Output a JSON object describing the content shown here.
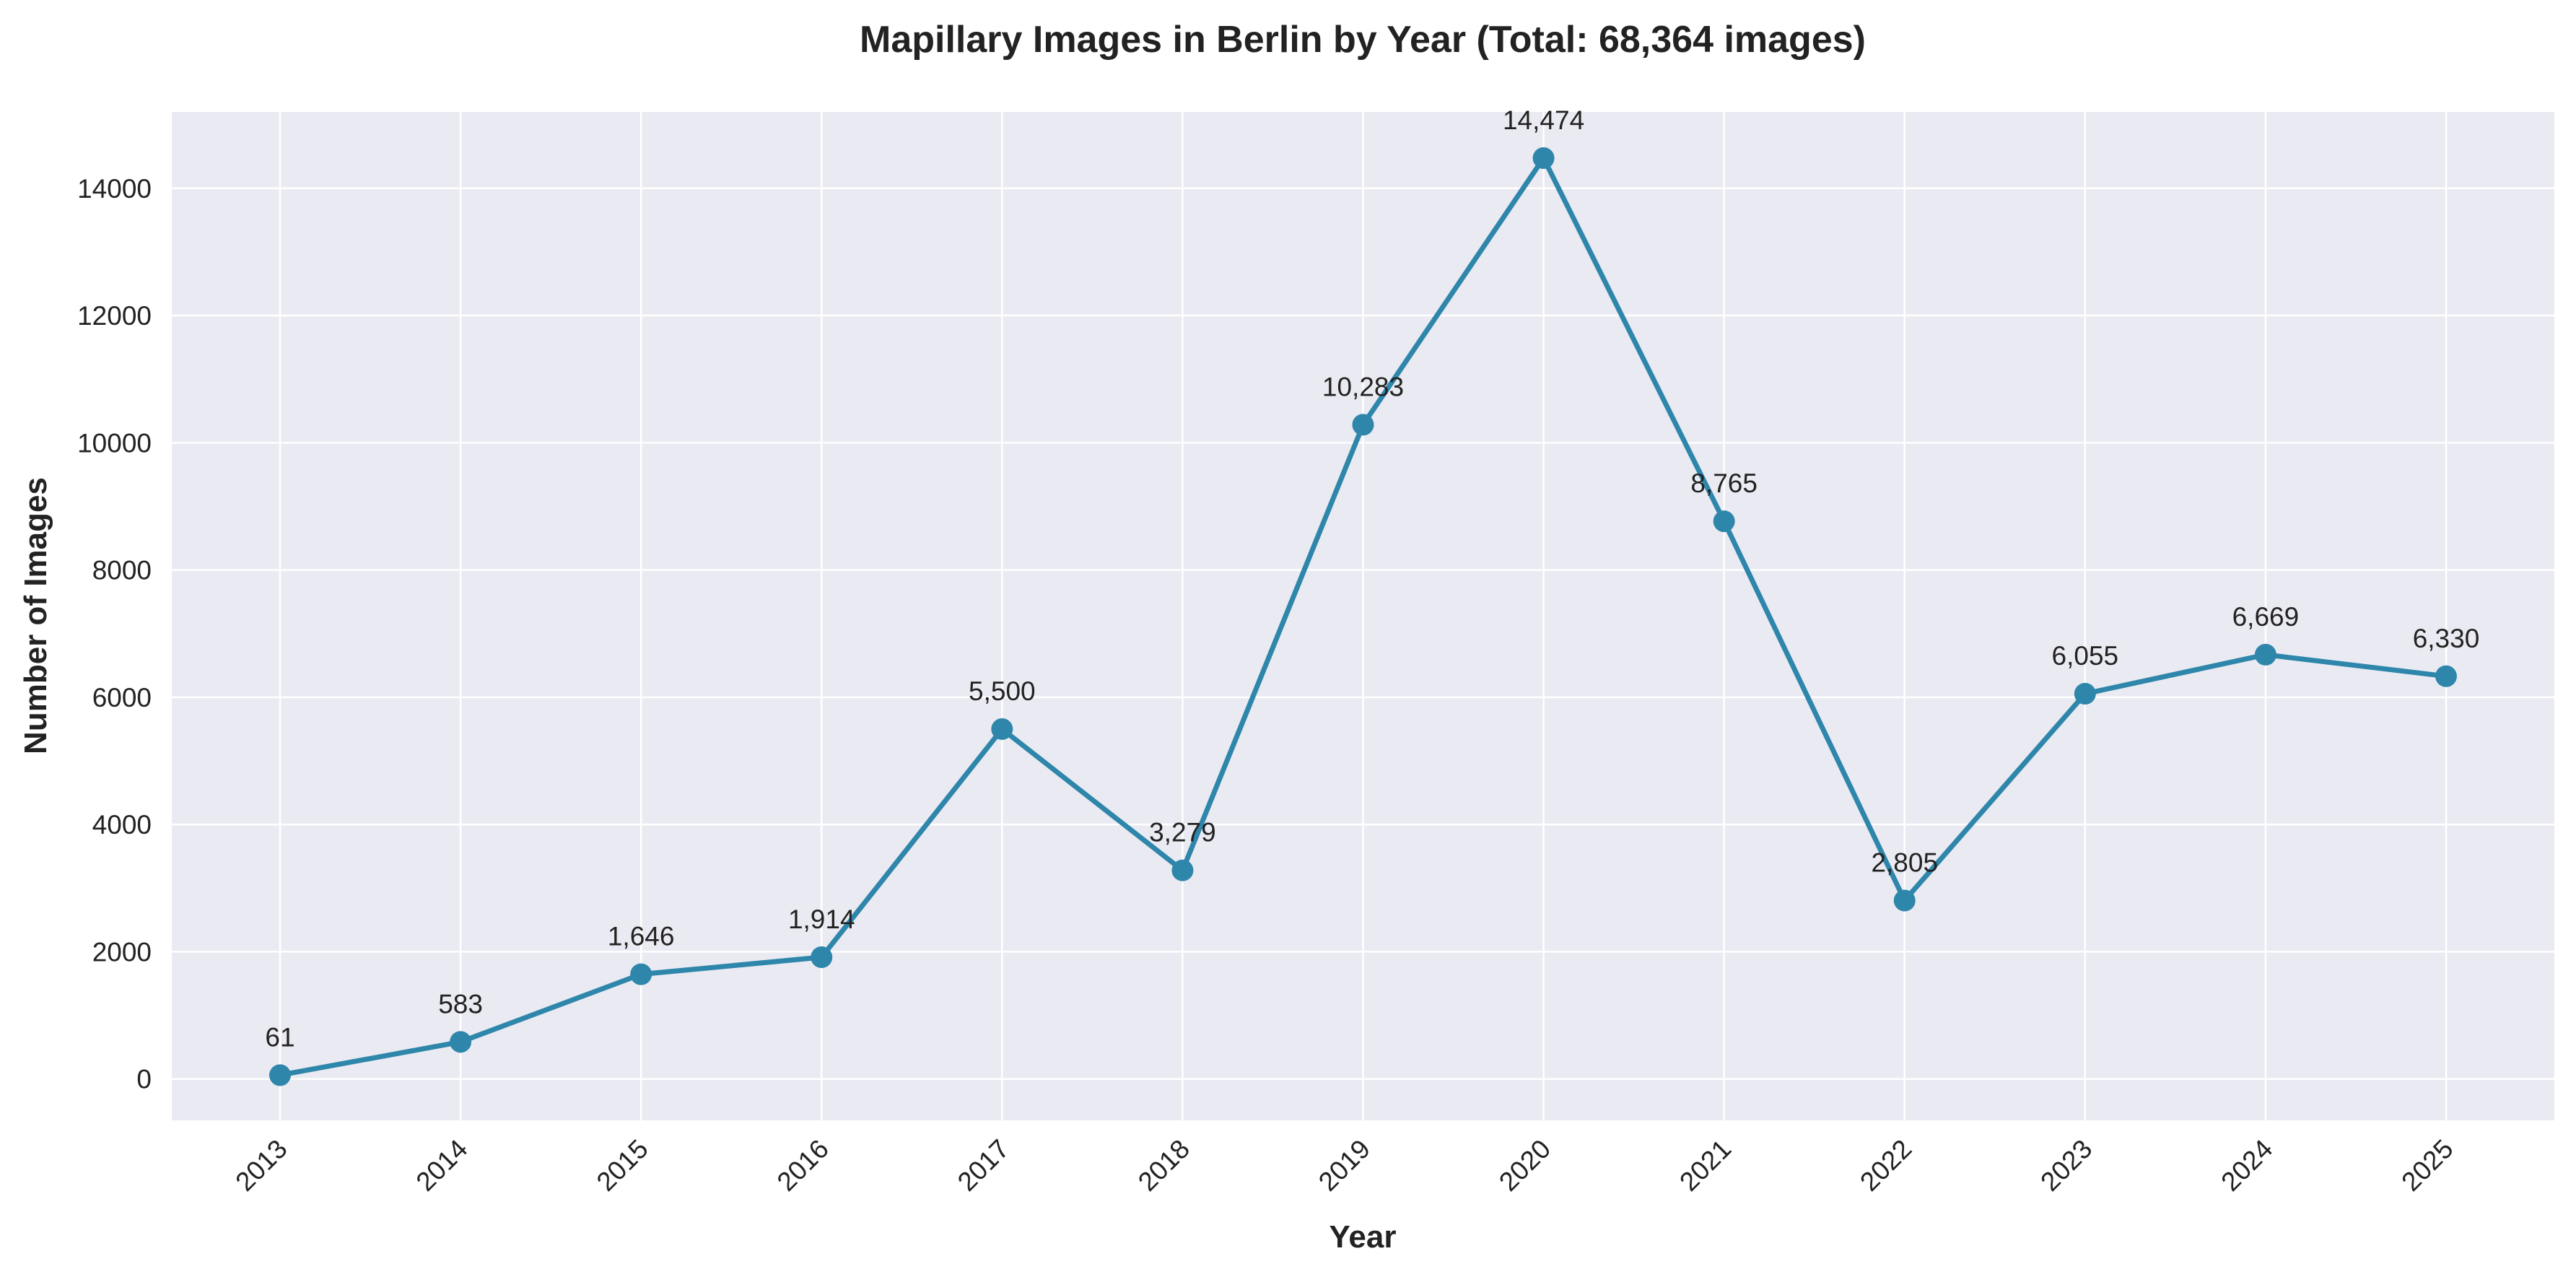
{
  "chart_data": {
    "type": "line",
    "title": "Mapillary Images in Berlin by Year (Total: 68,364 images)",
    "xlabel": "Year",
    "ylabel": "Number of Images",
    "categories": [
      "2013",
      "2014",
      "2015",
      "2016",
      "2017",
      "2018",
      "2019",
      "2020",
      "2021",
      "2022",
      "2023",
      "2024",
      "2025"
    ],
    "values": [
      61,
      583,
      1646,
      1914,
      5500,
      3279,
      10283,
      14474,
      8765,
      2805,
      6055,
      6669,
      6330
    ],
    "data_labels": [
      "61",
      "583",
      "1,646",
      "1,914",
      "5,500",
      "3,279",
      "10,283",
      "14,474",
      "8,765",
      "2,805",
      "6,055",
      "6,669",
      "6,330"
    ],
    "yticks": [
      0,
      2000,
      4000,
      6000,
      8000,
      10000,
      12000,
      14000
    ],
    "ylim": [
      -650,
      15200
    ],
    "grid": true,
    "legend": "none",
    "colors": {
      "line": "#2e86ab",
      "plot_background": "#eaeaf2",
      "grid": "#ffffff"
    }
  }
}
